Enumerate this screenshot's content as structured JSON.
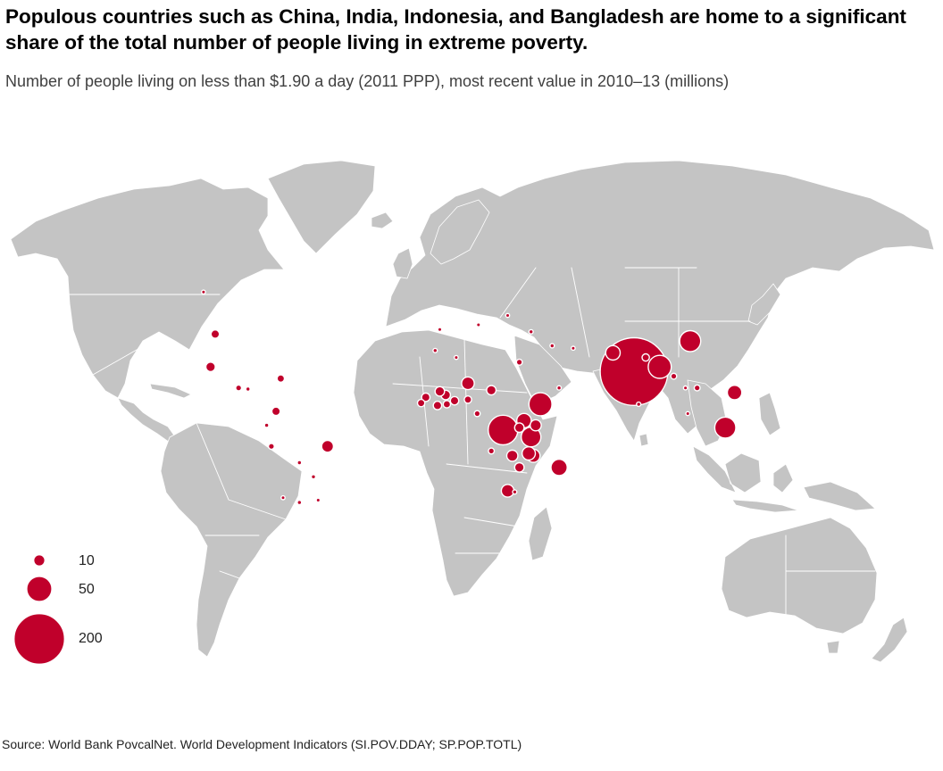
{
  "title": "Populous countries such as China, India, Indonesia, and Bangladesh are home to a significant share of the total number of people living in extreme poverty.",
  "subtitle": "Number of people living on less than $1.90 a day (2011 PPP), most recent value in 2010–13 (millions)",
  "source": "Source: World Bank PovcalNet. World Development Indicators (SI.POV.DDAY; SP.POP.TOTL)",
  "colors": {
    "bubble": "#c0002b",
    "land": "#c4c4c4",
    "border": "#ffffff"
  },
  "legend": {
    "entries": [
      {
        "label": "10",
        "value": 10
      },
      {
        "label": "50",
        "value": 50
      },
      {
        "label": "200",
        "value": 200
      }
    ]
  },
  "map_data": {
    "projection": "equirectangular",
    "bubbles": [
      {
        "id": "india",
        "lon": 79,
        "lat": 22,
        "value": 260
      },
      {
        "id": "china",
        "lon": 103,
        "lat": 35,
        "value": 25
      },
      {
        "id": "bangladesh",
        "lon": 90,
        "lat": 24,
        "value": 30
      },
      {
        "id": "dr-congo",
        "lon": 23,
        "lat": -3,
        "value": 50
      },
      {
        "id": "nigeria",
        "lon": 8,
        "lat": 10,
        "value": 3
      },
      {
        "id": "ethiopia",
        "lon": 39,
        "lat": 8,
        "value": 30
      },
      {
        "id": "tanzania",
        "lon": 35,
        "lat": -6,
        "value": 22
      },
      {
        "id": "indonesia",
        "lon": 118,
        "lat": -2,
        "value": 25
      },
      {
        "id": "madagascar",
        "lon": 47,
        "lat": -19,
        "value": 15
      },
      {
        "id": "pakistan",
        "lon": 70,
        "lat": 30,
        "value": 12
      },
      {
        "id": "philippines",
        "lon": 122,
        "lat": 13,
        "value": 12
      },
      {
        "id": "uganda",
        "lon": 32,
        "lat": 1,
        "value": 12
      },
      {
        "id": "mozambique",
        "lon": 36,
        "lat": -14,
        "value": 10
      },
      {
        "id": "malawi",
        "lon": 34,
        "lat": -13,
        "value": 10
      },
      {
        "id": "kenya",
        "lon": 37,
        "lat": -1,
        "value": 7
      },
      {
        "id": "niger",
        "lon": 8,
        "lat": 17,
        "value": 9
      },
      {
        "id": "brazil",
        "lon": -52,
        "lat": -10,
        "value": 8
      },
      {
        "id": "south-africa",
        "lon": 25,
        "lat": -29,
        "value": 9
      },
      {
        "id": "chad",
        "lon": 18,
        "lat": 14,
        "value": 5
      },
      {
        "id": "zambia",
        "lon": 27,
        "lat": -14,
        "value": 7
      },
      {
        "id": "zimbabwe",
        "lon": 30,
        "lat": -19,
        "value": 5
      },
      {
        "id": "rwanda",
        "lon": 30,
        "lat": -2,
        "value": 5
      },
      {
        "id": "united-states",
        "lon": -100,
        "lat": 38,
        "value": 4
      },
      {
        "id": "mexico",
        "lon": -102,
        "lat": 24,
        "value": 5
      },
      {
        "id": "colombia",
        "lon": -74,
        "lat": 5,
        "value": 4
      },
      {
        "id": "haiti",
        "lon": -72,
        "lat": 19,
        "value": 3
      },
      {
        "id": "burkina-faso",
        "lon": -1.5,
        "lat": 12,
        "value": 5
      },
      {
        "id": "ghana",
        "lon": -1,
        "lat": 8,
        "value": 3
      },
      {
        "id": "cote-divoire",
        "lon": -5,
        "lat": 7.5,
        "value": 4
      },
      {
        "id": "mali",
        "lon": -4,
        "lat": 13.5,
        "value": 5
      },
      {
        "id": "guinea",
        "lon": -10,
        "lat": 11,
        "value": 4
      },
      {
        "id": "sierra-leone",
        "lon": -12,
        "lat": 8.5,
        "value": 3
      },
      {
        "id": "benin",
        "lon": 2.3,
        "lat": 9.5,
        "value": 4
      },
      {
        "id": "nepal",
        "lon": 84,
        "lat": 28,
        "value": 3
      },
      {
        "id": "burma",
        "lon": 96,
        "lat": 20,
        "value": 2
      },
      {
        "id": "vietnam",
        "lon": 106,
        "lat": 15,
        "value": 2
      },
      {
        "id": "egypt",
        "lon": 30,
        "lat": 26,
        "value": 2
      },
      {
        "id": "guatemala",
        "lon": -90,
        "lat": 15,
        "value": 2
      },
      {
        "id": "peru",
        "lon": -76,
        "lat": -10,
        "value": 2
      },
      {
        "id": "cameroon",
        "lon": 12,
        "lat": 4,
        "value": 2
      },
      {
        "id": "angola",
        "lon": 18,
        "lat": -12,
        "value": 2
      },
      {
        "id": "lesotho",
        "lon": 28,
        "lat": -29.5,
        "value": 1
      },
      {
        "id": "sri-lanka",
        "lon": 81,
        "lat": 8,
        "value": 1
      },
      {
        "id": "iraq",
        "lon": 44,
        "lat": 33,
        "value": 1
      },
      {
        "id": "yemen",
        "lon": 47,
        "lat": 15,
        "value": 1
      },
      {
        "id": "bolivia",
        "lon": -64,
        "lat": -17,
        "value": 1
      },
      {
        "id": "honduras",
        "lon": -86,
        "lat": 14.5,
        "value": 1
      },
      {
        "id": "ecuador",
        "lon": -78,
        "lat": -1,
        "value": 1
      },
      {
        "id": "argentina",
        "lon": -64,
        "lat": -34,
        "value": 1
      },
      {
        "id": "paraguay",
        "lon": -58,
        "lat": -23,
        "value": 1
      },
      {
        "id": "morocco",
        "lon": -6,
        "lat": 31,
        "value": 1
      },
      {
        "id": "turkey",
        "lon": 35,
        "lat": 39,
        "value": 1
      },
      {
        "id": "canada",
        "lon": -105,
        "lat": 56,
        "value": 0.3
      },
      {
        "id": "algeria",
        "lon": 3,
        "lat": 28,
        "value": 0.3
      },
      {
        "id": "iran",
        "lon": 53,
        "lat": 32,
        "value": 0.3
      },
      {
        "id": "romania",
        "lon": 25,
        "lat": 46,
        "value": 0.3
      },
      {
        "id": "spain",
        "lon": -4,
        "lat": 40,
        "value": 0.3
      },
      {
        "id": "italy",
        "lon": 12.5,
        "lat": 42,
        "value": 0.3
      },
      {
        "id": "thailand",
        "lon": 101,
        "lat": 15,
        "value": 0.3
      },
      {
        "id": "malaysia",
        "lon": 102,
        "lat": 4,
        "value": 0.3
      },
      {
        "id": "chile",
        "lon": -71,
        "lat": -32,
        "value": 0.3
      },
      {
        "id": "uruguay",
        "lon": -56,
        "lat": -33,
        "value": 0.3
      }
    ]
  }
}
